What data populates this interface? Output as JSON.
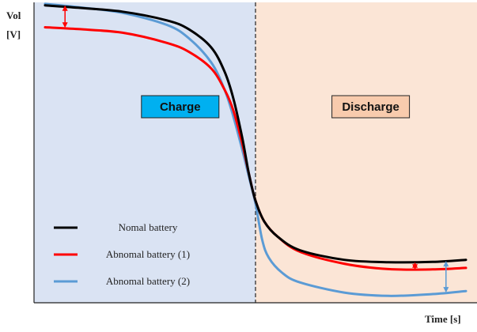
{
  "chart_data": {
    "type": "line",
    "ylabel_line1": "Vol",
    "ylabel_line2": "[V]",
    "xlabel": "Time [s]",
    "xlim": [
      0,
      100
    ],
    "ylim": [
      0,
      100
    ],
    "divider_x": 50,
    "regions": [
      {
        "name": "charge",
        "label": "Charge",
        "from": 0,
        "to": 50,
        "color": "#dae3f3",
        "box_color": "#00b0f0"
      },
      {
        "name": "discharge",
        "label": "Discharge",
        "from": 50,
        "to": 100,
        "color": "#fbe5d6",
        "box_color": "#f8cbad"
      }
    ],
    "series": [
      {
        "name": "Nomal battery",
        "color": "#000000",
        "x": [
          2.5,
          10,
          20,
          30,
          35,
          40,
          43,
          45,
          47,
          48.5,
          50,
          52,
          55,
          60,
          70,
          80,
          90,
          97.5
        ],
        "y": [
          99,
          98.2,
          96.9,
          94,
          91,
          85,
          77,
          68,
          55,
          43,
          34,
          27,
          22,
          17.5,
          14.3,
          13.5,
          13.6,
          14.3
        ]
      },
      {
        "name": "Abnomal battery (1)",
        "color": "#ff0000",
        "x": [
          2.5,
          10,
          20,
          30,
          35,
          40,
          43,
          45,
          47,
          48.5,
          50,
          52,
          55,
          60,
          70,
          80,
          90,
          97.5
        ],
        "y": [
          91.7,
          91.1,
          89.9,
          86.5,
          83.5,
          78,
          71,
          64,
          53,
          43,
          34,
          27,
          22,
          17,
          13,
          11.2,
          11.1,
          11.6
        ]
      },
      {
        "name": "Abnomal battery (2)",
        "color": "#5b9bd5",
        "x": [
          2.5,
          10,
          20,
          30,
          35,
          40,
          43,
          45,
          47,
          48.5,
          50,
          51.5,
          53,
          56,
          60,
          70,
          80,
          90,
          97.5
        ],
        "y": [
          99.5,
          98.4,
          96.5,
          92.5,
          88,
          80,
          71,
          62,
          51,
          42,
          33,
          21,
          15,
          10,
          6.8,
          3.4,
          2.3,
          2.9,
          3.9
        ]
      }
    ],
    "annotations": [
      {
        "color": "#ff0000",
        "x": 7,
        "y_from": 91.5,
        "y_to": 99
      },
      {
        "color": "#ff0000",
        "x": 86,
        "y_from": 11.0,
        "y_to": 13.5
      },
      {
        "color": "#5b9bd5",
        "x": 93,
        "y_from": 3.4,
        "y_to": 13.9
      }
    ],
    "legend": [
      {
        "label": "Nomal battery",
        "color": "#000000"
      },
      {
        "label": "Abnomal battery (1)",
        "color": "#ff0000"
      },
      {
        "label": "Abnomal battery (2)",
        "color": "#5b9bd5"
      }
    ],
    "legend_position": "bottom-left"
  }
}
